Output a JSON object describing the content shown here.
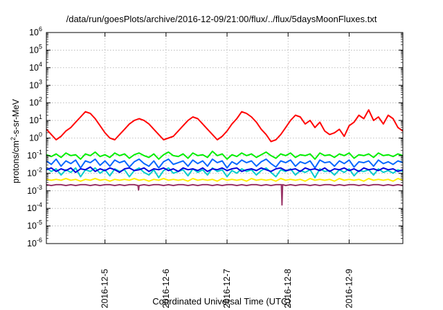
{
  "chart_data": {
    "type": "line",
    "title": "/data/run/goesPlots/archive/2016-12-09/21:00/flux/../flux/5daysMoonFluxes.txt",
    "xlabel": "Coordinated Universal Time (UTC)",
    "ylabel": "protons/cm²-s-sr-MeV",
    "ylabel_parts": {
      "pre": "protons/cm",
      "sup": "2",
      "post": "-s-sr-MeV"
    },
    "yscale": "log",
    "ylim_exp": [
      -6,
      6
    ],
    "ytick_labels": [
      {
        "base": "10",
        "exp": "-6"
      },
      {
        "base": "10",
        "exp": "-5"
      },
      {
        "base": "10",
        "exp": "-4"
      },
      {
        "base": "10",
        "exp": "-3"
      },
      {
        "base": "10",
        "exp": "-2"
      },
      {
        "base": "10",
        "exp": "-1"
      },
      {
        "base": "10",
        "exp": "0"
      },
      {
        "base": "10",
        "exp": "1"
      },
      {
        "base": "10",
        "exp": "2"
      },
      {
        "base": "10",
        "exp": "3"
      },
      {
        "base": "10",
        "exp": "4"
      },
      {
        "base": "10",
        "exp": "5"
      },
      {
        "base": "10",
        "exp": "6"
      }
    ],
    "xlim_days": [
      4.04,
      9.88
    ],
    "xtick_labels": [
      "2016-12-5",
      "2016-12-6",
      "2016-12-7",
      "2016-12-8",
      "2016-12-9"
    ],
    "xtick_days": [
      5,
      6,
      7,
      8,
      9
    ],
    "grid": true,
    "legend": false,
    "series": [
      {
        "color": "#ff0000",
        "log10": [
          0.5,
          0.2,
          -0.1,
          0.1,
          0.4,
          0.6,
          0.9,
          1.2,
          1.5,
          1.4,
          1.1,
          0.7,
          0.3,
          0.0,
          -0.1,
          0.2,
          0.5,
          0.8,
          1.0,
          1.1,
          1.0,
          0.8,
          0.5,
          0.2,
          -0.1,
          0.0,
          0.1,
          0.4,
          0.7,
          1.0,
          1.2,
          1.1,
          0.8,
          0.5,
          0.2,
          -0.1,
          0.1,
          0.4,
          0.8,
          1.1,
          1.5,
          1.4,
          1.2,
          0.9,
          0.5,
          0.2,
          -0.2,
          -0.1,
          0.2,
          0.6,
          1.0,
          1.3,
          1.2,
          0.8,
          1.0,
          0.6,
          0.9,
          0.4,
          0.2,
          0.3,
          0.5,
          0.1,
          0.7,
          0.9,
          1.3,
          1.1,
          1.6,
          1.0,
          1.2,
          0.8,
          1.3,
          1.1,
          0.6,
          0.4
        ]
      },
      {
        "color": "#00ee00",
        "log10": [
          -0.95,
          -1.05,
          -0.9,
          -1.1,
          -0.85,
          -1.0,
          -0.95,
          -1.2,
          -0.9,
          -1.0,
          -0.8,
          -1.05,
          -0.95,
          -1.1,
          -0.85,
          -1.0,
          -0.9,
          -1.15,
          -0.95,
          -0.85,
          -1.0,
          -1.1,
          -0.9,
          -1.2,
          -0.95,
          -0.8,
          -1.0,
          -1.05,
          -0.9,
          -1.15,
          -0.85,
          -1.0,
          -0.95,
          -1.1,
          -0.75,
          -1.0,
          -0.9,
          -1.2,
          -0.95,
          -1.05,
          -0.85,
          -1.0,
          -0.9,
          -1.1,
          -0.95,
          -0.8,
          -1.0,
          -1.15,
          -0.9,
          -1.0,
          -0.85,
          -1.1,
          -0.95,
          -1.0,
          -0.9,
          -1.2,
          -0.85,
          -1.0,
          -0.95,
          -1.1,
          -0.9,
          -1.0,
          -0.85,
          -1.15,
          -0.95,
          -1.0,
          -0.9,
          -1.1,
          -0.85,
          -1.0,
          -0.95,
          -1.05,
          -0.9,
          -1.0
        ]
      },
      {
        "color": "#0066ff",
        "log10": [
          -1.3,
          -1.5,
          -1.2,
          -1.6,
          -1.3,
          -1.45,
          -1.25,
          -1.7,
          -1.3,
          -1.4,
          -1.2,
          -1.55,
          -1.3,
          -1.6,
          -1.25,
          -1.4,
          -1.3,
          -1.65,
          -1.35,
          -1.2,
          -1.45,
          -1.6,
          -1.3,
          -1.7,
          -1.35,
          -1.2,
          -1.5,
          -1.4,
          -1.3,
          -1.6,
          -1.25,
          -1.45,
          -1.3,
          -1.6,
          -1.2,
          -1.4,
          -1.3,
          -1.7,
          -1.35,
          -1.5,
          -1.25,
          -1.4,
          -1.3,
          -1.6,
          -1.35,
          -1.2,
          -1.45,
          -1.65,
          -1.3,
          -1.4,
          -1.25,
          -1.6,
          -1.35,
          -1.45,
          -1.3,
          -1.7,
          -1.25,
          -1.4,
          -1.35,
          -1.6,
          -1.3,
          -1.45,
          -1.25,
          -1.65,
          -1.35,
          -1.4,
          -1.3,
          -1.6,
          -1.25,
          -1.45,
          -1.35,
          -1.5,
          -1.3,
          -1.4
        ]
      },
      {
        "color": "#00cccc",
        "log10": [
          -1.7,
          -1.9,
          -1.75,
          -2.1,
          -1.8,
          -1.95,
          -1.7,
          -2.2,
          -1.8,
          -1.9,
          -1.7,
          -2.0,
          -1.8,
          -2.15,
          -1.75,
          -1.9,
          -1.8,
          -2.2,
          -1.85,
          -1.7,
          -1.95,
          -2.1,
          -1.8,
          -2.25,
          -1.85,
          -1.7,
          -2.0,
          -1.9,
          -1.8,
          -2.15,
          -1.75,
          -1.95,
          -1.8,
          -2.1,
          -1.7,
          -1.9,
          -1.8,
          -2.2,
          -1.85,
          -2.0,
          -1.75,
          -1.9,
          -1.8,
          -2.1,
          -1.85,
          -1.7,
          -1.95,
          -2.2,
          -1.8,
          -1.9,
          -1.75,
          -2.1,
          -1.85,
          -1.95,
          -1.8,
          -2.25,
          -1.75,
          -1.9,
          -1.85,
          -2.1,
          -1.8,
          -1.95,
          -1.75,
          -2.15,
          -1.85,
          -1.9,
          -1.8,
          -2.1,
          -1.75,
          -1.95,
          -1.85,
          -2.0,
          -1.8,
          -1.9
        ]
      },
      {
        "color": "#0000dd",
        "log10": [
          -1.8,
          -1.7,
          -1.9,
          -1.75,
          -1.85,
          -1.7,
          -1.95,
          -1.75,
          -1.8,
          -1.65,
          -1.9,
          -1.75,
          -1.85,
          -1.7,
          -1.8,
          -1.95,
          -1.75,
          -1.7,
          -1.85,
          -1.8,
          -1.7,
          -1.9,
          -1.75,
          -1.8,
          -1.7,
          -1.85,
          -1.75,
          -1.9,
          -1.7,
          -1.8,
          -1.75,
          -1.85,
          -1.7,
          -1.9,
          -1.75,
          -1.8,
          -1.7,
          -1.85,
          -1.75,
          -1.7,
          -1.9,
          -1.8,
          -1.75,
          -1.85,
          -1.7,
          -1.8,
          -1.9,
          -1.75,
          -1.7,
          -1.85,
          -1.8,
          -1.75,
          -1.9,
          -1.7,
          -1.8,
          -1.75,
          -1.85,
          -1.7,
          -1.9,
          -1.75,
          -1.8,
          -1.7,
          -1.85,
          -1.75,
          -1.9,
          -1.7,
          -1.8,
          -1.75,
          -1.85,
          -1.7,
          -1.8,
          -1.75,
          -1.9,
          -1.8
        ]
      },
      {
        "color": "#ffee00",
        "log10": [
          -2.35,
          -2.4,
          -2.35,
          -2.4,
          -2.3,
          -2.4,
          -2.35,
          -2.45,
          -2.35,
          -2.4,
          -2.3,
          -2.4,
          -2.35,
          -2.45,
          -2.35,
          -2.4,
          -2.35,
          -2.4,
          -2.3,
          -2.4,
          -2.35,
          -2.45,
          -2.35,
          -2.4,
          -2.3,
          -2.4,
          -2.35,
          -2.4,
          -2.35,
          -2.45,
          -2.3,
          -2.4,
          -2.35,
          -2.4,
          -2.35,
          -2.45,
          -2.3,
          -2.4,
          -2.35,
          -2.4,
          -2.35,
          -2.45,
          -2.3,
          -2.4,
          -2.35,
          -2.4,
          -2.35,
          -2.45,
          -2.3,
          -2.4,
          -2.35,
          -2.4,
          -2.35,
          -2.45,
          -2.3,
          -2.4,
          -2.35,
          -2.4,
          -2.35,
          -2.45,
          -2.3,
          -2.4,
          -2.35,
          -2.4,
          -2.35,
          -2.45,
          -2.3,
          -2.4,
          -2.35,
          -2.4,
          -2.35,
          -2.45,
          -2.3,
          -2.4
        ]
      },
      {
        "color": "#993366",
        "log10": [
          -2.65,
          -2.7,
          -2.65,
          -2.65,
          -2.7,
          -2.65,
          -2.7,
          -2.65,
          -2.65,
          -2.7,
          -2.65,
          -2.7,
          -2.65,
          -2.65,
          -2.7,
          -2.65,
          -2.7,
          -2.65,
          -2.65,
          -2.7,
          -2.65,
          -2.7,
          -2.65,
          -2.65,
          -2.7,
          -2.65,
          -2.7,
          -2.65,
          -2.65,
          -2.7,
          -2.65,
          -2.7,
          -2.65,
          -2.65,
          -2.7,
          -2.65,
          -2.7,
          -2.65,
          -2.65,
          -2.7,
          -2.65,
          -2.7,
          -2.65,
          -2.65,
          -2.7,
          -2.65,
          -2.7,
          -2.65,
          -2.65,
          -2.7,
          -2.65,
          -2.7,
          -2.65,
          -2.65,
          -2.7,
          -2.65,
          -2.7,
          -2.65,
          -2.65,
          -2.7,
          -2.65,
          -2.7,
          -2.65,
          -2.65,
          -2.7,
          -2.65,
          -2.7,
          -2.65,
          -2.65,
          -2.7,
          -2.65,
          -2.7,
          -2.65,
          -2.7
        ],
        "dips": [
          {
            "day": 7.9,
            "log10": -3.8
          },
          {
            "day": 5.55,
            "log10": -2.95
          }
        ]
      }
    ]
  }
}
